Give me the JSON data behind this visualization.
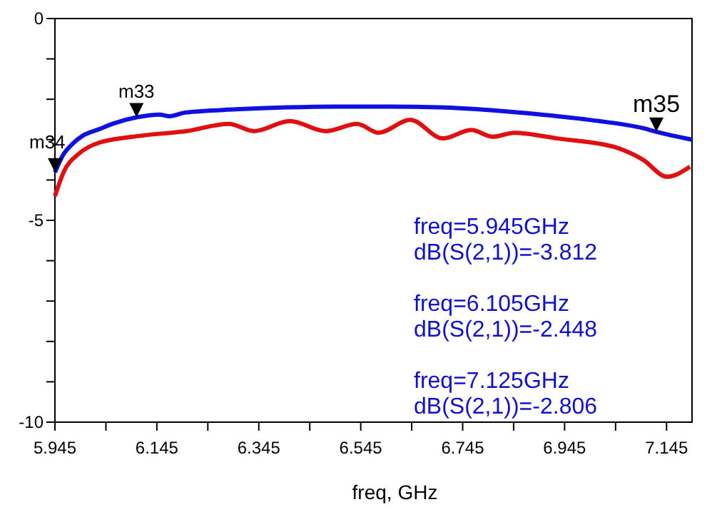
{
  "chart_data": {
    "type": "line",
    "xlabel": "freq, GHz",
    "xlim": [
      5.945,
      7.195
    ],
    "xticks": [
      5.945,
      {
        "value": 6.045,
        "label": null
      },
      6.145,
      {
        "value": 6.245,
        "label": null
      },
      6.345,
      {
        "value": 6.445,
        "label": null
      },
      6.545,
      {
        "value": 6.645,
        "label": null
      },
      6.745,
      {
        "value": 6.845,
        "label": null
      },
      6.945,
      {
        "value": 7.045,
        "label": null
      },
      7.145
    ],
    "ylim": [
      -10,
      0
    ],
    "yticks": [
      0,
      {
        "value": -1,
        "label": null
      },
      {
        "value": -2,
        "label": null
      },
      {
        "value": -3,
        "label": null
      },
      {
        "value": -4,
        "label": null
      },
      -5,
      {
        "value": -6,
        "label": null
      },
      {
        "value": -7,
        "label": null
      },
      {
        "value": -8,
        "label": null
      },
      {
        "value": -9,
        "label": null
      },
      -10
    ],
    "grid": false,
    "marker": "none",
    "line_style": "solid",
    "series": [
      {
        "color": "#1010e0",
        "x": [
          5.945,
          5.96,
          5.98,
          6.0,
          6.03,
          6.06,
          6.105,
          6.15,
          6.17,
          6.2,
          6.3,
          6.4,
          6.5,
          6.6,
          6.7,
          6.8,
          6.9,
          7.0,
          7.1,
          7.125,
          7.195
        ],
        "values": [
          -3.812,
          -3.4,
          -3.1,
          -2.9,
          -2.75,
          -2.6,
          -2.448,
          -2.38,
          -2.42,
          -2.33,
          -2.25,
          -2.2,
          -2.18,
          -2.18,
          -2.2,
          -2.27,
          -2.38,
          -2.52,
          -2.72,
          -2.806,
          -3.0
        ]
      },
      {
        "color": "#e01010",
        "x": [
          5.945,
          5.963,
          5.991,
          6.033,
          6.117,
          6.202,
          6.286,
          6.336,
          6.406,
          6.476,
          6.538,
          6.58,
          6.642,
          6.706,
          6.762,
          6.804,
          6.846,
          6.93,
          7.042,
          7.099,
          7.146,
          7.191
        ],
        "values": [
          -4.4,
          -3.78,
          -3.36,
          -3.07,
          -2.9,
          -2.79,
          -2.61,
          -2.79,
          -2.54,
          -2.79,
          -2.61,
          -2.83,
          -2.51,
          -2.97,
          -2.76,
          -2.93,
          -2.83,
          -2.97,
          -3.18,
          -3.5,
          -3.92,
          -3.67
        ]
      }
    ],
    "annotations": [
      {
        "text": "m34",
        "x": 5.945,
        "y": -3.812
      },
      {
        "text": "m33",
        "x": 6.105,
        "y": -2.448
      },
      {
        "text": "m35",
        "x": 7.125,
        "y": -2.806
      },
      "freq=5.945GHz",
      "dB(S(2,1))=-3.812",
      "freq=6.105GHz",
      "dB(S(2,1))=-2.448",
      "freq=7.125GHz",
      "dB(S(2,1))=-2.806"
    ]
  }
}
